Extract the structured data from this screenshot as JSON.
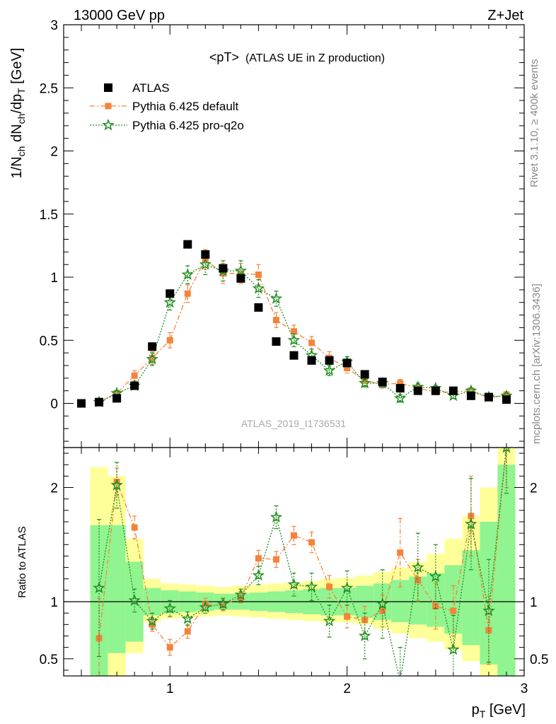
{
  "header": {
    "left": "13000 GeV pp",
    "right": "Z+Jet",
    "title_main": "<pT>",
    "title_sub": "(ATLAS UE in Z production)",
    "analysis_id": "ATLAS_2019_I1736531",
    "side_rivet": "Rivet 3.1.10, ≥ 400k events",
    "side_mcplots": "mcplots.cern.ch [arXiv:1306.3436]"
  },
  "colors": {
    "atlas": "#000000",
    "pythia_default": "#f5833a",
    "pythia_proq2o": "#1e8c1e",
    "band_inner": "#90f490",
    "band_outer": "#ffff99"
  },
  "chart_data": [
    {
      "type": "scatter",
      "ylabel": "1/N_ch dN_ch/dp_T [GeV]",
      "xlim": [
        0.4,
        3.0
      ],
      "ylim": [
        -0.35,
        3.0
      ],
      "y_ticks": [
        "0",
        "0.5",
        "1",
        "1.5",
        "2",
        "2.5",
        "3"
      ],
      "legend_position": "top-left",
      "x": [
        0.5,
        0.6,
        0.7,
        0.8,
        0.9,
        1.0,
        1.1,
        1.2,
        1.3,
        1.4,
        1.5,
        1.6,
        1.7,
        1.8,
        1.9,
        2.0,
        2.1,
        2.2,
        2.3,
        2.4,
        2.5,
        2.6,
        2.7,
        2.8,
        2.9
      ],
      "series": [
        {
          "name": "ATLAS",
          "marker": "square",
          "values": [
            0.0,
            0.01,
            0.04,
            0.14,
            0.45,
            0.87,
            1.26,
            1.18,
            1.07,
            0.99,
            0.76,
            0.49,
            0.38,
            0.34,
            0.34,
            0.32,
            0.23,
            0.17,
            0.12,
            0.1,
            0.1,
            0.1,
            0.06,
            0.05,
            0.03
          ]
        },
        {
          "name": "Pythia 6.425 default",
          "marker": "square-small",
          "values": [
            null,
            0.01,
            0.08,
            0.22,
            0.36,
            0.5,
            0.87,
            1.14,
            1.03,
            1.03,
            1.02,
            0.66,
            0.57,
            0.48,
            0.36,
            0.28,
            0.18,
            0.15,
            0.16,
            0.12,
            0.09,
            0.09,
            0.1,
            0.04,
            0.07
          ],
          "errors": [
            null,
            0.01,
            0.02,
            0.04,
            0.05,
            0.06,
            0.07,
            0.08,
            0.08,
            0.08,
            0.08,
            0.06,
            0.05,
            0.05,
            0.05,
            0.04,
            0.04,
            0.03,
            0.03,
            0.03,
            0.02,
            0.02,
            0.02,
            0.02,
            0.02
          ]
        },
        {
          "name": "Pythia 6.425 pro-q2o",
          "marker": "star",
          "values": [
            null,
            0.01,
            0.08,
            0.14,
            0.35,
            0.8,
            1.02,
            1.1,
            1.05,
            1.05,
            0.91,
            0.83,
            0.5,
            0.38,
            0.26,
            0.33,
            0.16,
            0.16,
            0.04,
            0.13,
            0.12,
            0.06,
            0.1,
            0.05,
            0.06
          ],
          "errors": [
            null,
            0.01,
            0.02,
            0.03,
            0.05,
            0.06,
            0.07,
            0.08,
            0.08,
            0.08,
            0.07,
            0.06,
            0.05,
            0.05,
            0.04,
            0.04,
            0.03,
            0.03,
            0.03,
            0.03,
            0.02,
            0.02,
            0.02,
            0.02,
            0.02
          ]
        }
      ]
    },
    {
      "type": "scatter",
      "ylabel": "Ratio to ATLAS",
      "xlabel": "p_T [GeV]",
      "xlim": [
        0.4,
        3.0
      ],
      "ylim": [
        0.35,
        2.35
      ],
      "x_ticks": [
        "1",
        "2",
        "3"
      ],
      "y_ticks": [
        "0.5",
        "1",
        "2"
      ],
      "x": [
        0.6,
        0.7,
        0.8,
        0.9,
        1.0,
        1.1,
        1.2,
        1.3,
        1.4,
        1.5,
        1.6,
        1.7,
        1.8,
        1.9,
        2.0,
        2.1,
        2.2,
        2.3,
        2.4,
        2.5,
        2.6,
        2.7,
        2.8,
        2.9
      ],
      "bands": {
        "x_edges": [
          0.55,
          0.65,
          0.75,
          0.85,
          0.95,
          1.05,
          1.15,
          1.25,
          1.35,
          1.45,
          1.55,
          1.65,
          1.75,
          1.85,
          1.95,
          2.05,
          2.15,
          2.25,
          2.35,
          2.45,
          2.55,
          2.65,
          2.75,
          2.85,
          2.95
        ],
        "inner_lo": [
          0.35,
          0.55,
          0.65,
          0.88,
          0.9,
          0.91,
          0.92,
          0.93,
          0.93,
          0.92,
          0.91,
          0.9,
          0.89,
          0.88,
          0.88,
          0.86,
          0.84,
          0.82,
          0.8,
          0.78,
          0.72,
          0.62,
          0.45,
          0.35
        ],
        "inner_hi": [
          1.67,
          1.67,
          1.35,
          1.12,
          1.1,
          1.09,
          1.08,
          1.07,
          1.07,
          1.08,
          1.09,
          1.1,
          1.11,
          1.12,
          1.12,
          1.14,
          1.16,
          1.19,
          1.22,
          1.25,
          1.32,
          1.45,
          1.7,
          2.2
        ],
        "outer_lo": [
          0.35,
          0.35,
          0.55,
          0.82,
          0.85,
          0.86,
          0.87,
          0.88,
          0.87,
          0.86,
          0.85,
          0.84,
          0.83,
          0.82,
          0.82,
          0.8,
          0.76,
          0.72,
          0.68,
          0.65,
          0.58,
          0.48,
          0.35,
          0.35
        ],
        "outer_hi": [
          2.18,
          2.1,
          1.55,
          1.2,
          1.16,
          1.15,
          1.14,
          1.13,
          1.14,
          1.15,
          1.16,
          1.17,
          1.18,
          1.2,
          1.21,
          1.23,
          1.26,
          1.3,
          1.35,
          1.42,
          1.55,
          1.75,
          2.0,
          2.35
        ]
      },
      "series": [
        {
          "name": "Pythia 6.425 default",
          "values": [
            0.68,
            2.05,
            1.65,
            0.8,
            0.6,
            0.74,
            0.98,
            0.97,
            1.04,
            1.38,
            1.37,
            1.58,
            1.52,
            1.13,
            0.87,
            0.84,
            0.92,
            1.43,
            1.19,
            0.96,
            0.92,
            1.75,
            0.75,
            2.4
          ],
          "errors": [
            0.35,
            0.12,
            0.1,
            0.06,
            0.07,
            0.06,
            0.05,
            0.05,
            0.05,
            0.07,
            0.07,
            0.08,
            0.09,
            0.1,
            0.1,
            0.12,
            0.14,
            0.3,
            0.18,
            0.2,
            0.22,
            0.35,
            0.3,
            0.4
          ]
        },
        {
          "name": "Pythia 6.425 pro-q2o",
          "values": [
            1.12,
            2.02,
            1.01,
            0.83,
            0.94,
            0.85,
            0.95,
            0.98,
            1.06,
            1.23,
            1.74,
            1.15,
            1.13,
            0.83,
            1.12,
            0.7,
            0.98,
            0.3,
            1.3,
            1.22,
            0.58,
            1.68,
            0.92,
            2.35
          ],
          "errors": [
            0.6,
            0.2,
            0.1,
            0.07,
            0.07,
            0.06,
            0.05,
            0.05,
            0.05,
            0.08,
            0.1,
            0.1,
            0.12,
            0.14,
            0.15,
            0.2,
            0.3,
            0.3,
            0.3,
            0.28,
            0.3,
            0.4,
            0.45,
            0.4
          ]
        }
      ]
    }
  ]
}
